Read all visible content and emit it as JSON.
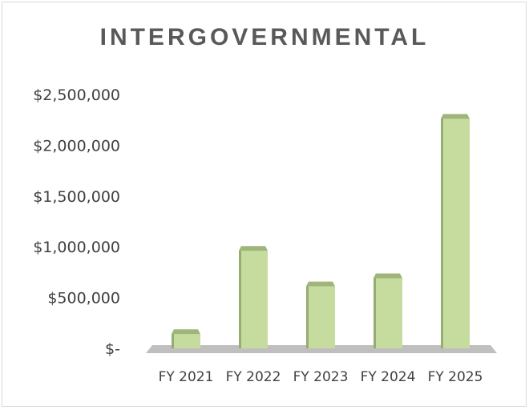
{
  "chart_data": {
    "type": "bar",
    "title": "INTERGOVERNMENTAL",
    "categories": [
      "FY 2021",
      "FY 2022",
      "FY 2023",
      "FY 2024",
      "FY 2025"
    ],
    "values": [
      140000,
      960000,
      610000,
      690000,
      2260000
    ],
    "ylim": [
      0,
      2500000
    ],
    "yticks": [
      {
        "value": 0,
        "label": "$-"
      },
      {
        "value": 500000,
        "label": "$500,000"
      },
      {
        "value": 1000000,
        "label": "$1,000,000"
      },
      {
        "value": 1500000,
        "label": "$1,500,000"
      },
      {
        "value": 2000000,
        "label": "$2,000,000"
      },
      {
        "value": 2500000,
        "label": "$2,500,000"
      }
    ],
    "grid": false,
    "bar_color": "#c6dc9f",
    "bar_top_color": "#9fb57a",
    "bar_side_color": "#6e8550",
    "floor_color": "#bfbfbf"
  }
}
